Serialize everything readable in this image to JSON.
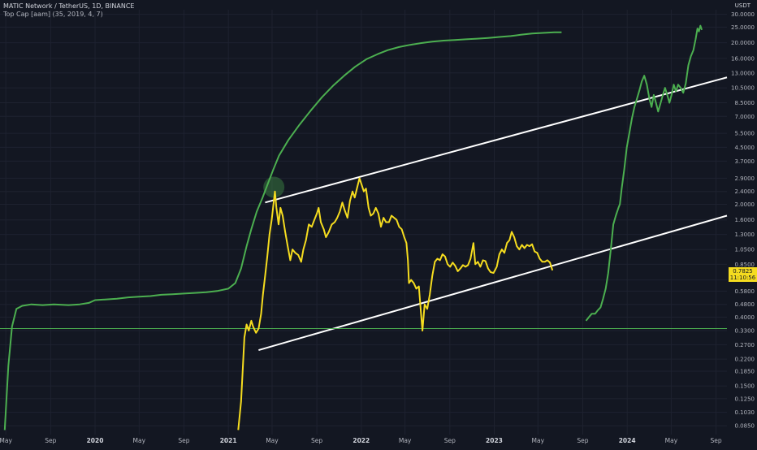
{
  "header": {
    "title": "MATIC Network / TetherUS, 1D, BINANCE",
    "indicator": "Top Cap [aam] (35, 2019, 4, 7)",
    "currency": "USDT"
  },
  "price_tag": {
    "value": "0.7825",
    "countdown": "11:10:56",
    "color": "#f5dc1f"
  },
  "chart_data": {
    "type": "line",
    "title": "MATIC Network / TetherUS, 1D, BINANCE",
    "yscale": "log",
    "ylim": [
      0.075,
      32
    ],
    "xlim": [
      "2019-04-15",
      "2024-10-01"
    ],
    "grid": true,
    "y_ticks": [
      "30.0000",
      "25.0000",
      "20.0000",
      "16.0000",
      "13.0000",
      "10.5000",
      "8.5000",
      "7.0000",
      "5.5000",
      "4.5000",
      "3.7000",
      "2.9000",
      "2.4000",
      "2.0000",
      "1.6000",
      "1.3000",
      "1.0500",
      "0.8500",
      "0.6800",
      "0.5800",
      "0.4800",
      "0.4000",
      "0.3300",
      "0.2700",
      "0.2200",
      "0.1850",
      "0.1500",
      "0.1250",
      "0.1030",
      "0.0850"
    ],
    "x_ticks": [
      {
        "label": "May",
        "date": "2019-05-01",
        "bold": false
      },
      {
        "label": "Sep",
        "date": "2019-09-01",
        "bold": false
      },
      {
        "label": "2020",
        "date": "2020-01-01",
        "bold": true
      },
      {
        "label": "May",
        "date": "2020-05-01",
        "bold": false
      },
      {
        "label": "Sep",
        "date": "2020-09-01",
        "bold": false
      },
      {
        "label": "2021",
        "date": "2021-01-01",
        "bold": true
      },
      {
        "label": "May",
        "date": "2021-05-01",
        "bold": false
      },
      {
        "label": "Sep",
        "date": "2021-09-01",
        "bold": false
      },
      {
        "label": "2022",
        "date": "2022-01-01",
        "bold": true
      },
      {
        "label": "May",
        "date": "2022-05-01",
        "bold": false
      },
      {
        "label": "Sep",
        "date": "2022-09-01",
        "bold": false
      },
      {
        "label": "2023",
        "date": "2023-01-01",
        "bold": true
      },
      {
        "label": "May",
        "date": "2023-05-01",
        "bold": false
      },
      {
        "label": "Sep",
        "date": "2023-09-01",
        "bold": false
      },
      {
        "label": "2024",
        "date": "2024-01-01",
        "bold": true
      },
      {
        "label": "May",
        "date": "2024-05-01",
        "bold": false
      },
      {
        "label": "Sep",
        "date": "2024-09-01",
        "bold": false
      }
    ],
    "series": [
      {
        "color": "#f5dc1f",
        "points": [
          [
            "2021-01-28",
            0.08
          ],
          [
            "2021-02-05",
            0.12
          ],
          [
            "2021-02-10",
            0.2
          ],
          [
            "2021-02-14",
            0.3
          ],
          [
            "2021-02-20",
            0.36
          ],
          [
            "2021-02-26",
            0.33
          ],
          [
            "2021-03-05",
            0.38
          ],
          [
            "2021-03-10",
            0.35
          ],
          [
            "2021-03-18",
            0.32
          ],
          [
            "2021-03-25",
            0.34
          ],
          [
            "2021-04-01",
            0.42
          ],
          [
            "2021-04-06",
            0.55
          ],
          [
            "2021-04-12",
            0.72
          ],
          [
            "2021-04-18",
            0.95
          ],
          [
            "2021-04-24",
            1.3
          ],
          [
            "2021-04-30",
            1.6
          ],
          [
            "2021-05-05",
            2.0
          ],
          [
            "2021-05-09",
            2.4
          ],
          [
            "2021-05-13",
            1.9
          ],
          [
            "2021-05-19",
            1.5
          ],
          [
            "2021-05-24",
            1.9
          ],
          [
            "2021-05-30",
            1.7
          ],
          [
            "2021-06-06",
            1.35
          ],
          [
            "2021-06-13",
            1.1
          ],
          [
            "2021-06-20",
            0.9
          ],
          [
            "2021-06-26",
            1.05
          ],
          [
            "2021-07-04",
            1.0
          ],
          [
            "2021-07-12",
            0.97
          ],
          [
            "2021-07-20",
            0.88
          ],
          [
            "2021-07-26",
            1.05
          ],
          [
            "2021-08-02",
            1.2
          ],
          [
            "2021-08-10",
            1.5
          ],
          [
            "2021-08-18",
            1.45
          ],
          [
            "2021-08-25",
            1.6
          ],
          [
            "2021-09-01",
            1.75
          ],
          [
            "2021-09-06",
            1.9
          ],
          [
            "2021-09-12",
            1.55
          ],
          [
            "2021-09-20",
            1.4
          ],
          [
            "2021-09-26",
            1.25
          ],
          [
            "2021-10-04",
            1.35
          ],
          [
            "2021-10-12",
            1.5
          ],
          [
            "2021-10-20",
            1.55
          ],
          [
            "2021-10-27",
            1.65
          ],
          [
            "2021-11-03",
            1.8
          ],
          [
            "2021-11-10",
            2.05
          ],
          [
            "2021-11-16",
            1.85
          ],
          [
            "2021-11-24",
            1.65
          ],
          [
            "2021-12-01",
            2.1
          ],
          [
            "2021-12-08",
            2.4
          ],
          [
            "2021-12-14",
            2.2
          ],
          [
            "2021-12-20",
            2.5
          ],
          [
            "2021-12-27",
            2.9
          ],
          [
            "2022-01-03",
            2.6
          ],
          [
            "2022-01-08",
            2.4
          ],
          [
            "2022-01-14",
            2.5
          ],
          [
            "2022-01-21",
            1.9
          ],
          [
            "2022-01-27",
            1.7
          ],
          [
            "2022-02-03",
            1.75
          ],
          [
            "2022-02-10",
            1.9
          ],
          [
            "2022-02-17",
            1.75
          ],
          [
            "2022-02-24",
            1.45
          ],
          [
            "2022-03-03",
            1.65
          ],
          [
            "2022-03-10",
            1.55
          ],
          [
            "2022-03-18",
            1.55
          ],
          [
            "2022-03-25",
            1.7
          ],
          [
            "2022-04-01",
            1.65
          ],
          [
            "2022-04-08",
            1.6
          ],
          [
            "2022-04-15",
            1.45
          ],
          [
            "2022-04-22",
            1.4
          ],
          [
            "2022-04-29",
            1.25
          ],
          [
            "2022-05-05",
            1.15
          ],
          [
            "2022-05-09",
            0.9
          ],
          [
            "2022-05-12",
            0.65
          ],
          [
            "2022-05-18",
            0.68
          ],
          [
            "2022-05-25",
            0.65
          ],
          [
            "2022-06-01",
            0.6
          ],
          [
            "2022-06-08",
            0.62
          ],
          [
            "2022-06-13",
            0.45
          ],
          [
            "2022-06-18",
            0.33
          ],
          [
            "2022-06-24",
            0.48
          ],
          [
            "2022-07-01",
            0.45
          ],
          [
            "2022-07-08",
            0.55
          ],
          [
            "2022-07-15",
            0.72
          ],
          [
            "2022-07-22",
            0.88
          ],
          [
            "2022-07-29",
            0.92
          ],
          [
            "2022-08-05",
            0.9
          ],
          [
            "2022-08-12",
            0.98
          ],
          [
            "2022-08-19",
            0.95
          ],
          [
            "2022-08-26",
            0.85
          ],
          [
            "2022-09-02",
            0.82
          ],
          [
            "2022-09-09",
            0.87
          ],
          [
            "2022-09-16",
            0.83
          ],
          [
            "2022-09-23",
            0.77
          ],
          [
            "2022-09-30",
            0.8
          ],
          [
            "2022-10-07",
            0.84
          ],
          [
            "2022-10-14",
            0.82
          ],
          [
            "2022-10-21",
            0.84
          ],
          [
            "2022-10-28",
            0.92
          ],
          [
            "2022-11-05",
            1.15
          ],
          [
            "2022-11-10",
            0.85
          ],
          [
            "2022-11-17",
            0.88
          ],
          [
            "2022-11-24",
            0.82
          ],
          [
            "2022-12-01",
            0.9
          ],
          [
            "2022-12-08",
            0.89
          ],
          [
            "2022-12-15",
            0.8
          ],
          [
            "2022-12-22",
            0.76
          ],
          [
            "2022-12-30",
            0.75
          ],
          [
            "2023-01-08",
            0.82
          ],
          [
            "2023-01-15",
            0.98
          ],
          [
            "2023-01-22",
            1.05
          ],
          [
            "2023-01-29",
            1.0
          ],
          [
            "2023-02-05",
            1.15
          ],
          [
            "2023-02-12",
            1.2
          ],
          [
            "2023-02-18",
            1.35
          ],
          [
            "2023-02-25",
            1.25
          ],
          [
            "2023-03-04",
            1.1
          ],
          [
            "2023-03-11",
            1.05
          ],
          [
            "2023-03-18",
            1.12
          ],
          [
            "2023-03-25",
            1.07
          ],
          [
            "2023-04-01",
            1.12
          ],
          [
            "2023-04-08",
            1.1
          ],
          [
            "2023-04-15",
            1.13
          ],
          [
            "2023-04-22",
            1.02
          ],
          [
            "2023-04-29",
            1.0
          ],
          [
            "2023-05-06",
            0.92
          ],
          [
            "2023-05-13",
            0.88
          ],
          [
            "2023-05-20",
            0.88
          ],
          [
            "2023-05-27",
            0.9
          ],
          [
            "2023-06-03",
            0.87
          ],
          [
            "2023-06-10",
            0.78
          ]
        ]
      },
      {
        "color": "#4caf50",
        "points": [
          [
            "2023-09-10",
            0.38
          ],
          [
            "2023-09-18",
            0.4
          ],
          [
            "2023-09-26",
            0.42
          ],
          [
            "2023-10-05",
            0.42
          ],
          [
            "2023-10-12",
            0.44
          ],
          [
            "2023-10-20",
            0.46
          ],
          [
            "2023-10-27",
            0.52
          ],
          [
            "2023-11-03",
            0.6
          ],
          [
            "2023-11-10",
            0.75
          ],
          [
            "2023-11-17",
            1.05
          ],
          [
            "2023-11-24",
            1.5
          ],
          [
            "2023-12-01",
            1.7
          ],
          [
            "2023-12-08",
            1.9
          ],
          [
            "2023-12-12",
            2.0
          ],
          [
            "2023-12-17",
            2.5
          ],
          [
            "2023-12-24",
            3.3
          ],
          [
            "2023-12-31",
            4.5
          ],
          [
            "2024-01-07",
            5.5
          ],
          [
            "2024-01-14",
            6.8
          ],
          [
            "2024-01-21",
            8.0
          ],
          [
            "2024-01-28",
            9.0
          ],
          [
            "2024-02-04",
            10.2
          ],
          [
            "2024-02-10",
            11.5
          ],
          [
            "2024-02-17",
            12.5
          ],
          [
            "2024-02-24",
            11.0
          ],
          [
            "2024-03-02",
            9.0
          ],
          [
            "2024-03-08",
            8.0
          ],
          [
            "2024-03-14",
            9.5
          ],
          [
            "2024-03-20",
            8.5
          ],
          [
            "2024-03-26",
            7.5
          ],
          [
            "2024-04-02",
            8.5
          ],
          [
            "2024-04-08",
            9.5
          ],
          [
            "2024-04-14",
            10.5
          ],
          [
            "2024-04-20",
            9.5
          ],
          [
            "2024-04-26",
            8.5
          ],
          [
            "2024-05-02",
            9.5
          ],
          [
            "2024-05-08",
            11.0
          ],
          [
            "2024-05-14",
            10.0
          ],
          [
            "2024-05-20",
            11.0
          ],
          [
            "2024-05-27",
            10.5
          ],
          [
            "2024-06-03",
            9.8
          ],
          [
            "2024-06-10",
            11.2
          ],
          [
            "2024-06-17",
            14.5
          ],
          [
            "2024-06-24",
            16.5
          ],
          [
            "2024-07-01",
            18.0
          ],
          [
            "2024-07-07",
            21.0
          ],
          [
            "2024-07-12",
            24.5
          ],
          [
            "2024-07-16",
            23.5
          ],
          [
            "2024-07-20",
            25.5
          ],
          [
            "2024-07-24",
            24.0
          ]
        ]
      },
      {
        "color": "#4caf50",
        "points": [
          [
            "2019-04-28",
            0.08
          ],
          [
            "2019-05-08",
            0.2
          ],
          [
            "2019-05-18",
            0.35
          ],
          [
            "2019-05-30",
            0.45
          ],
          [
            "2019-06-15",
            0.47
          ],
          [
            "2019-07-10",
            0.48
          ],
          [
            "2019-08-10",
            0.475
          ],
          [
            "2019-09-10",
            0.48
          ],
          [
            "2019-10-20",
            0.475
          ],
          [
            "2019-11-20",
            0.48
          ],
          [
            "2019-12-15",
            0.49
          ],
          [
            "2020-01-01",
            0.51
          ],
          [
            "2020-02-01",
            0.515
          ],
          [
            "2020-03-01",
            0.52
          ],
          [
            "2020-04-01",
            0.53
          ],
          [
            "2020-05-01",
            0.535
          ],
          [
            "2020-06-01",
            0.54
          ],
          [
            "2020-07-01",
            0.55
          ],
          [
            "2020-08-01",
            0.555
          ],
          [
            "2020-09-01",
            0.56
          ],
          [
            "2020-10-01",
            0.565
          ],
          [
            "2020-11-01",
            0.57
          ],
          [
            "2020-12-01",
            0.58
          ],
          [
            "2021-01-01",
            0.6
          ],
          [
            "2021-01-20",
            0.65
          ],
          [
            "2021-02-05",
            0.8
          ],
          [
            "2021-02-20",
            1.1
          ],
          [
            "2021-03-05",
            1.4
          ],
          [
            "2021-03-20",
            1.8
          ],
          [
            "2021-04-05",
            2.2
          ],
          [
            "2021-04-20",
            2.7
          ],
          [
            "2021-05-05",
            3.3
          ],
          [
            "2021-05-20",
            4.0
          ],
          [
            "2021-06-15",
            5.0
          ],
          [
            "2021-07-15",
            6.2
          ],
          [
            "2021-08-15",
            7.6
          ],
          [
            "2021-09-15",
            9.2
          ],
          [
            "2021-10-15",
            10.8
          ],
          [
            "2021-11-15",
            12.5
          ],
          [
            "2021-12-15",
            14.2
          ],
          [
            "2022-01-15",
            15.8
          ],
          [
            "2022-02-15",
            17.0
          ],
          [
            "2022-03-15",
            18.0
          ],
          [
            "2022-04-15",
            18.8
          ],
          [
            "2022-05-15",
            19.4
          ],
          [
            "2022-06-15",
            19.9
          ],
          [
            "2022-07-15",
            20.3
          ],
          [
            "2022-08-15",
            20.6
          ],
          [
            "2022-09-15",
            20.8
          ],
          [
            "2022-10-15",
            21.0
          ],
          [
            "2022-11-15",
            21.2
          ],
          [
            "2022-12-15",
            21.4
          ],
          [
            "2023-01-15",
            21.7
          ],
          [
            "2023-02-15",
            22.0
          ],
          [
            "2023-03-15",
            22.4
          ],
          [
            "2023-04-15",
            22.8
          ],
          [
            "2023-05-15",
            23.0
          ],
          [
            "2023-06-15",
            23.2
          ],
          [
            "2023-07-05",
            23.2
          ]
        ]
      }
    ],
    "annotations": {
      "channel_lines": [
        {
          "color": "#ffffff",
          "from": [
            "2021-04-12",
            2.05
          ],
          "to": [
            "2024-10-01",
            12.2
          ]
        },
        {
          "color": "#ffffff",
          "from": [
            "2021-03-25",
            0.25
          ],
          "to": [
            "2024-10-01",
            1.7
          ]
        }
      ],
      "horizontal_line": {
        "color": "#4caf50",
        "y": 0.34
      },
      "marker": {
        "date": "2021-05-06",
        "y": 2.55,
        "color": "#4caf50"
      }
    }
  }
}
